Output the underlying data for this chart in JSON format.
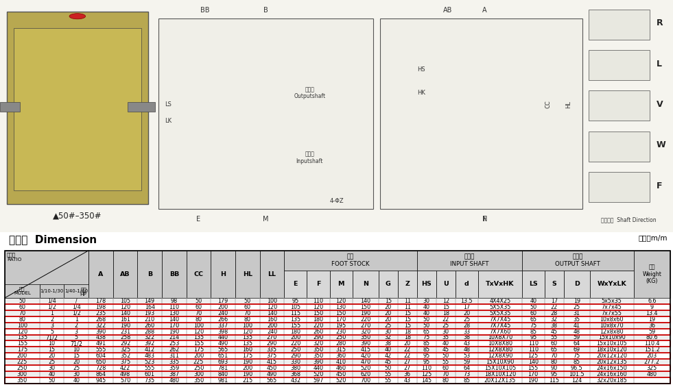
{
  "title": "尺寸表  Dimension",
  "unit": "單位：m/m",
  "rows": [
    [
      50,
      "1/4",
      "/",
      178,
      105,
      149,
      98,
      50,
      179,
      50,
      100,
      95,
      110,
      120,
      140,
      15,
      11,
      30,
      12,
      "13.5",
      "4X4X25",
      40,
      17,
      19,
      "5x5x35",
      "6.6"
    ],
    [
      60,
      "1/2",
      "1/4",
      198,
      120,
      164,
      110,
      60,
      200,
      60,
      120,
      105,
      120,
      130,
      150,
      20,
      11,
      40,
      15,
      17,
      "5X5X35",
      50,
      22,
      25,
      "7x7x45",
      9
    ],
    [
      70,
      "1",
      "1/2",
      235,
      140,
      193,
      130,
      70,
      240,
      70,
      140,
      115,
      150,
      150,
      190,
      20,
      15,
      40,
      18,
      20,
      "5X5X35",
      60,
      28,
      31,
      "7x7x55",
      "13.4"
    ],
    [
      80,
      "2",
      "1",
      268,
      161,
      210,
      140,
      80,
      266,
      80,
      160,
      135,
      180,
      170,
      220,
      20,
      15,
      50,
      22,
      25,
      "7X7X45",
      65,
      32,
      35,
      "10x8x60",
      19
    ],
    [
      100,
      "3",
      "2",
      322,
      190,
      260,
      170,
      100,
      337,
      100,
      200,
      155,
      220,
      195,
      270,
      25,
      15,
      50,
      25,
      28,
      "7X7X45",
      75,
      38,
      41,
      "10x8x70",
      36
    ],
    [
      120,
      "5",
      "3",
      390,
      231,
      288,
      190,
      120,
      398,
      120,
      240,
      180,
      260,
      230,
      320,
      30,
      18,
      65,
      30,
      33,
      "7X7X60",
      85,
      45,
      48,
      "12x8x80",
      59
    ],
    [
      135,
      "71/2",
      "5",
      438,
      258,
      322,
      214,
      135,
      440,
      135,
      270,
      200,
      290,
      250,
      350,
      32,
      18,
      75,
      35,
      38,
      "10X8X70",
      95,
      55,
      59,
      "15x10x90",
      "80.6"
    ],
    [
      155,
      "10",
      "71/2",
      491,
      292,
      392,
      253,
      155,
      490,
      135,
      290,
      220,
      320,
      280,
      390,
      38,
      20,
      85,
      40,
      43,
      "10X8X80",
      110,
      60,
      64,
      "15x10x105",
      "110.4"
    ],
    [
      175,
      "15",
      "10",
      555,
      325,
      412,
      262,
      175,
      565,
      160,
      335,
      250,
      350,
      315,
      415,
      40,
      22,
      85,
      45,
      48,
      "12X8X80",
      110,
      65,
      69,
      "18x10x120",
      "151.2"
    ],
    [
      200,
      "20",
      "15",
      604,
      352,
      483,
      311,
      200,
      651,
      175,
      375,
      290,
      350,
      360,
      420,
      42,
      22,
      95,
      50,
      53,
      "12X8X90",
      125,
      70,
      75,
      "20x12x120",
      203
    ],
    [
      225,
      "25",
      "20",
      650,
      375,
      523,
      335,
      225,
      693,
      190,
      415,
      330,
      390,
      410,
      470,
      45,
      27,
      95,
      55,
      59,
      "15X10X90",
      140,
      80,
      85,
      "20x12x135",
      "277.2"
    ],
    [
      250,
      "30",
      "25",
      728,
      422,
      555,
      359,
      250,
      781,
      200,
      450,
      380,
      440,
      460,
      520,
      50,
      27,
      110,
      60,
      64,
      "15X10X105",
      155,
      90,
      "96.5",
      "24x16x150",
      325
    ],
    [
      300,
      "40",
      "30",
      864,
      498,
      601,
      387,
      300,
      840,
      190,
      490,
      368,
      520,
      450,
      620,
      55,
      36,
      125,
      70,
      73,
      "18X10X120",
      170,
      95,
      "101.5",
      "24x16x160",
      480
    ],
    [
      350,
      "50",
      "40",
      945,
      570,
      735,
      480,
      350,
      981,
      215,
      565,
      432,
      597,
      520,
      700,
      55,
      43,
      145,
      80,
      85,
      "20X12X135",
      190,
      115,
      124,
      "32x20x185",
      ""
    ]
  ],
  "red_rows": [
    1,
    3,
    5,
    7,
    9,
    11,
    13
  ],
  "font_size_table": 5.8,
  "header_bg": "#c8c8c8",
  "header_bg2": "#d8d8d8",
  "row_bg_even": "#eeeeee",
  "row_bg_odd": "#ffffff",
  "red_border_color": "#cc0000",
  "individual_cols": [
    "A",
    "AB",
    "B",
    "BB",
    "CC",
    "H",
    "HL",
    "LL"
  ],
  "foot_cols": [
    "E",
    "F",
    "M",
    "N",
    "G",
    "Z"
  ],
  "input_cols": [
    "HS",
    "U",
    "d",
    "TxVxHK"
  ],
  "output_cols": [
    "LS",
    "S",
    "D",
    "WxYxLK"
  ]
}
